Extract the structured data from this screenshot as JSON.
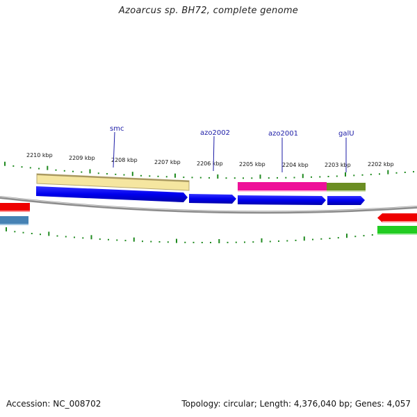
{
  "title": "Azoarcus sp. BH72, complete genome",
  "footer": {
    "accession": "Accession: NC_008702",
    "summary": "Topology: circular; Length: 4,376,040 bp; Genes: 4,057"
  },
  "kbp_labels": [
    "2210 kbp",
    "2209 kbp",
    "2208 kbp",
    "2207 kbp",
    "2206 kbp",
    "2205 kbp",
    "2204 kbp",
    "2203 kbp",
    "2202 kbp"
  ],
  "gene_labels": [
    "smc",
    "azo2002",
    "azo2001",
    "galU"
  ],
  "colors": {
    "backbone": "#8c8c8c",
    "cds": "#0000ee",
    "tick": "#1f8a1f",
    "smc_feature": "#f5e6a0",
    "azo2001_feature": "#ee1199",
    "galU_feature": "#6b8e23",
    "red_feature": "#ee0000",
    "steelblue_feature": "#4682b4",
    "green_feature": "#22cc22"
  }
}
